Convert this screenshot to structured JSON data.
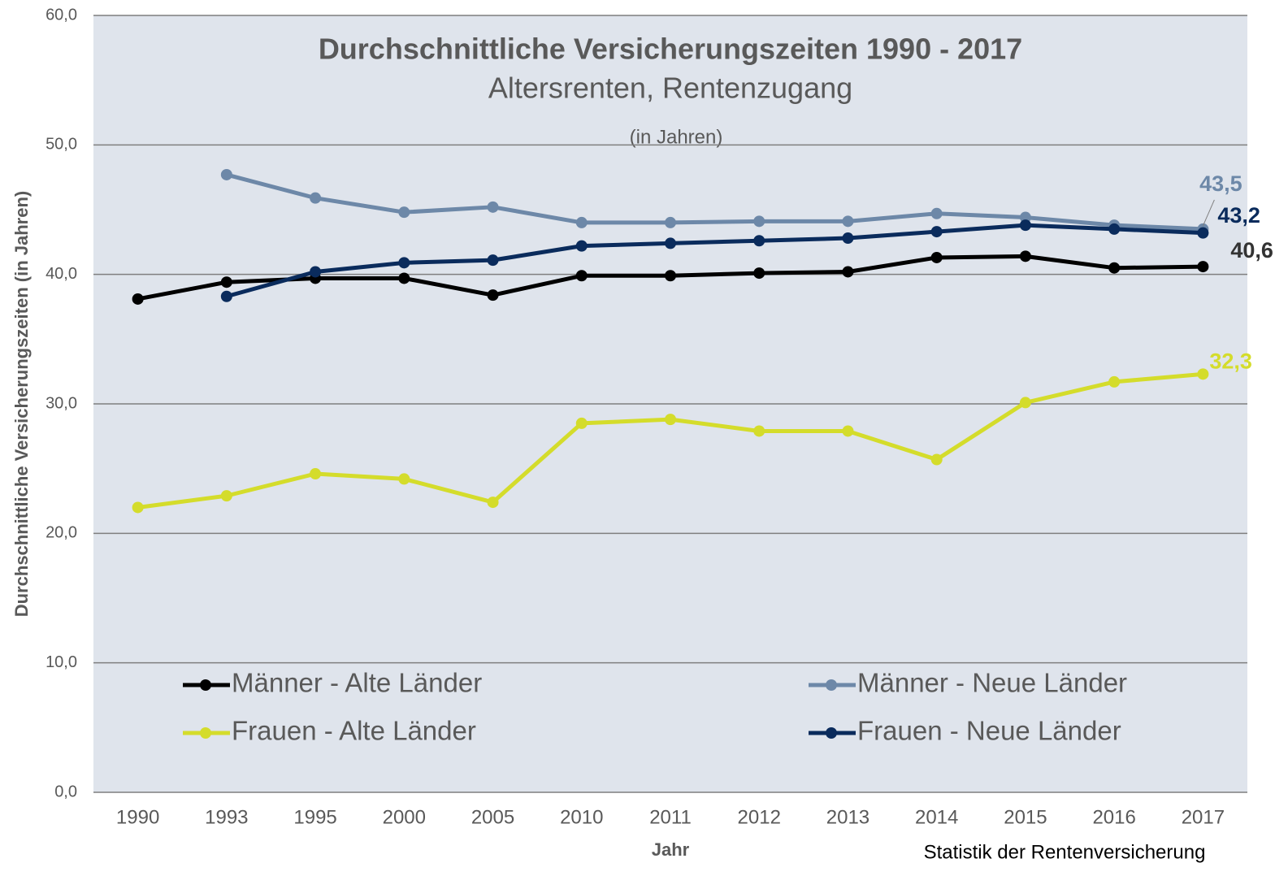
{
  "chart_data": {
    "type": "line",
    "title": "Durchschnittliche Versicherungszeiten 1990 - 2017",
    "subtitle": "Altersrenten, Rentenzugang",
    "note": "(in Jahren)",
    "y_label": "Durchschnittliche Versicherungszeiten (in Jahren)",
    "x_label": "Jahr",
    "source": "Statistik der Rentenversicherung",
    "categories": [
      "1990",
      "1993",
      "1995",
      "2000",
      "2005",
      "2010",
      "2011",
      "2012",
      "2013",
      "2014",
      "2015",
      "2016",
      "2017"
    ],
    "ylim": [
      0,
      60
    ],
    "yticks": [
      {
        "value": 0,
        "label": "0,0"
      },
      {
        "value": 10,
        "label": "10,0"
      },
      {
        "value": 20,
        "label": "20,0"
      },
      {
        "value": 30,
        "label": "30,0"
      },
      {
        "value": 40,
        "label": "40,0"
      },
      {
        "value": 50,
        "label": "50,0"
      },
      {
        "value": 60,
        "label": "60,0"
      }
    ],
    "grid": true,
    "series": [
      {
        "name": "Männer - Alte Länder",
        "color": "#000000",
        "values": [
          38.1,
          39.4,
          39.7,
          39.7,
          38.4,
          39.9,
          39.9,
          40.1,
          40.2,
          41.3,
          41.4,
          40.5,
          40.6
        ],
        "value_labels": [
          null,
          null,
          null,
          null,
          null,
          null,
          null,
          null,
          null,
          null,
          null,
          null,
          "40,6"
        ]
      },
      {
        "name": "Männer - Neue Länder",
        "color": "#6d88a8",
        "values": [
          null,
          47.7,
          45.9,
          44.8,
          45.2,
          44.0,
          44.0,
          44.1,
          44.1,
          44.7,
          44.4,
          43.8,
          43.5
        ],
        "value_labels": [
          null,
          null,
          null,
          null,
          null,
          null,
          null,
          null,
          null,
          null,
          null,
          null,
          "43,5"
        ]
      },
      {
        "name": "Frauen - Alte Länder",
        "color": "#d4dc2b",
        "values": [
          22.0,
          22.9,
          24.6,
          24.2,
          22.4,
          28.5,
          28.8,
          27.9,
          27.9,
          25.7,
          30.1,
          31.7,
          32.3
        ],
        "value_labels": [
          null,
          null,
          null,
          null,
          null,
          null,
          null,
          null,
          null,
          null,
          null,
          null,
          "32,3"
        ]
      },
      {
        "name": "Frauen - Neue Länder",
        "color": "#0a2b5c",
        "values": [
          null,
          38.3,
          40.2,
          40.9,
          41.1,
          42.2,
          42.4,
          42.6,
          42.8,
          43.3,
          43.8,
          43.5,
          43.2
        ],
        "value_labels": [
          null,
          null,
          null,
          null,
          null,
          null,
          null,
          null,
          null,
          null,
          null,
          null,
          "43,2"
        ]
      }
    ]
  }
}
